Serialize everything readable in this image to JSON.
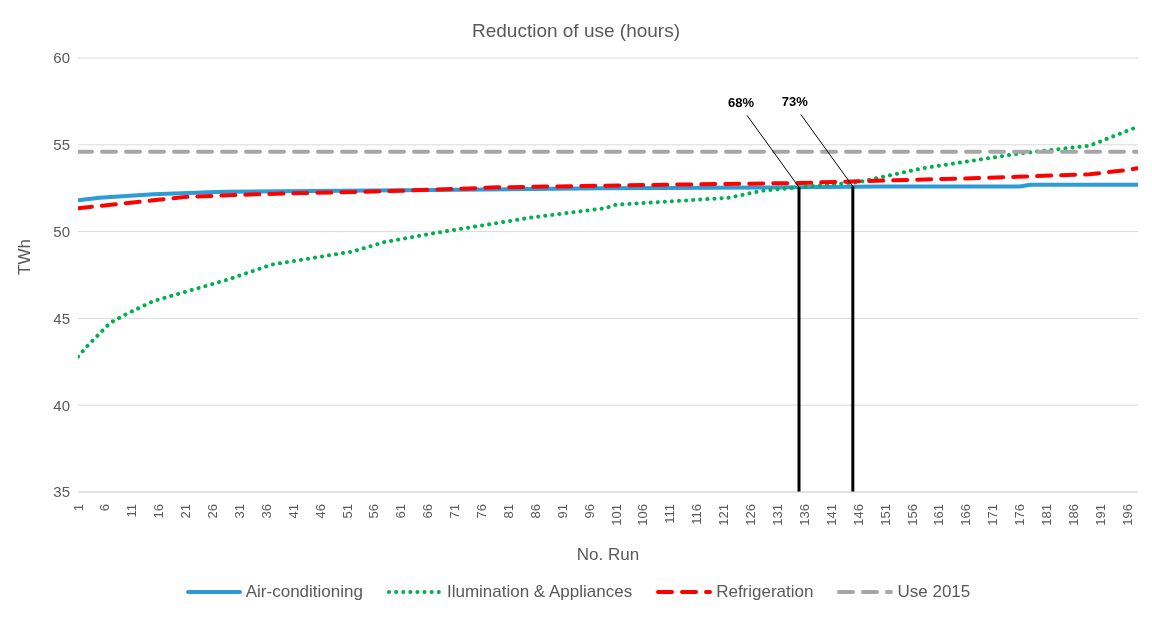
{
  "chart_data": {
    "type": "line",
    "title": "Reduction of use (hours)",
    "xlabel": "No. Run",
    "ylabel": "TWh",
    "xlim": [
      1,
      198
    ],
    "xticks": [
      1,
      6,
      11,
      16,
      21,
      26,
      31,
      36,
      41,
      46,
      51,
      56,
      61,
      66,
      71,
      76,
      81,
      86,
      91,
      96,
      101,
      106,
      111,
      116,
      121,
      126,
      131,
      136,
      141,
      146,
      151,
      156,
      161,
      166,
      171,
      176,
      181,
      186,
      191,
      196
    ],
    "ylim": [
      35,
      60
    ],
    "yticks": [
      35,
      40,
      45,
      50,
      55,
      60
    ],
    "grid": "y",
    "legend": "bottom",
    "marker": "none",
    "series": [
      {
        "name": "Air-conditioning",
        "color": "#2e9bd6",
        "line_style": "solid",
        "x": [
          1,
          5,
          10,
          15,
          28,
          50,
          67,
          99,
          135,
          150,
          176,
          178,
          198
        ],
        "values": [
          51.8,
          51.95,
          52.05,
          52.15,
          52.3,
          52.35,
          52.4,
          52.5,
          52.55,
          52.6,
          52.6,
          52.7,
          52.7
        ]
      },
      {
        "name": "Ilumination & Appliances",
        "color": "#00b050",
        "line_style": "dotted",
        "x": [
          1,
          3,
          7,
          10,
          15,
          24,
          29,
          37,
          52,
          58,
          67,
          85,
          99,
          101,
          122,
          128,
          135,
          146,
          158,
          176,
          189,
          198
        ],
        "values": [
          42.8,
          43.5,
          44.75,
          45.25,
          46.0,
          46.8,
          47.25,
          48.1,
          48.85,
          49.4,
          49.9,
          50.8,
          51.35,
          51.55,
          51.95,
          52.35,
          52.55,
          52.85,
          53.65,
          54.5,
          54.95,
          56.05
        ]
      },
      {
        "name": "Refrigeration",
        "color": "#ff0000",
        "line_style": "dashed",
        "x": [
          1,
          15,
          21,
          34,
          61,
          79,
          110,
          135,
          146,
          170,
          189,
          196,
          198
        ],
        "values": [
          51.35,
          51.8,
          52.0,
          52.15,
          52.35,
          52.55,
          52.7,
          52.8,
          52.9,
          53.1,
          53.3,
          53.55,
          53.65
        ]
      },
      {
        "name": "Use 2015",
        "color": "#a6a6a6",
        "line_style": "dashed",
        "x": [
          1,
          198
        ],
        "values": [
          54.6,
          54.6
        ]
      }
    ],
    "ref_lines": [
      {
        "axis": "x",
        "value": 135,
        "color": "#000000"
      },
      {
        "axis": "x",
        "value": 145,
        "color": "#000000"
      }
    ],
    "annotations": [
      {
        "text": "68%",
        "x": 135,
        "y": 52.55
      },
      {
        "text": "73%",
        "x": 145,
        "y": 52.6
      }
    ]
  }
}
